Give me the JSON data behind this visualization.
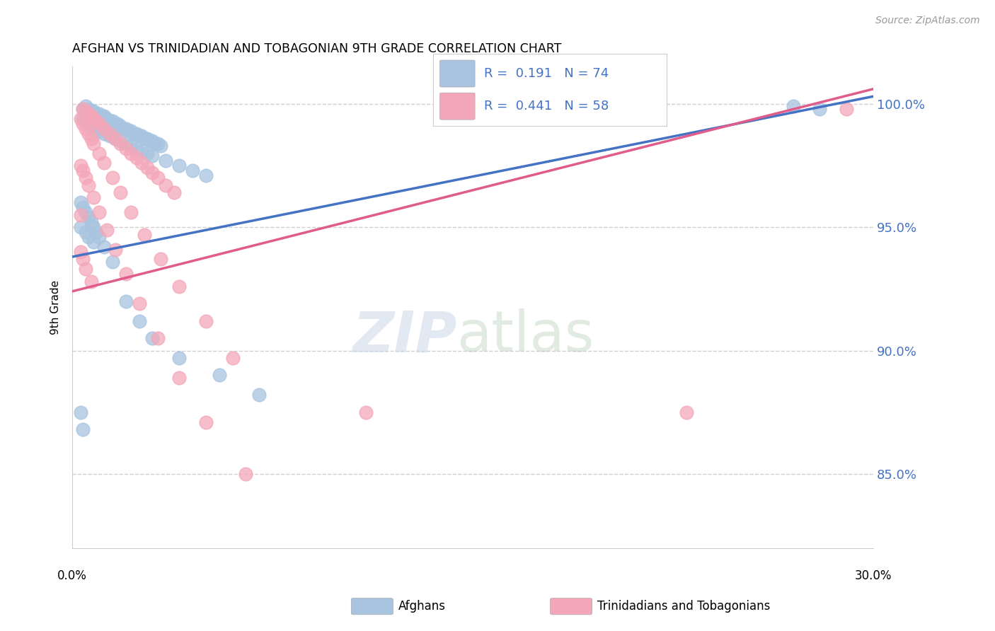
{
  "title": "AFGHAN VS TRINIDADIAN AND TOBAGONIAN 9TH GRADE CORRELATION CHART",
  "source": "Source: ZipAtlas.com",
  "ylabel": "9th Grade",
  "ytick_labels": [
    "85.0%",
    "90.0%",
    "95.0%",
    "100.0%"
  ],
  "ytick_values": [
    0.85,
    0.9,
    0.95,
    1.0
  ],
  "xlim": [
    0.0,
    0.3
  ],
  "ylim": [
    0.82,
    1.015
  ],
  "legend_r1": "R =  0.191   N = 74",
  "legend_r2": "R =  0.441   N = 58",
  "color_blue": "#a8c4e0",
  "color_pink": "#f4a7b9",
  "line_color_blue": "#4472c4",
  "line_color_pink": "#e05c8a",
  "grid_color": "#d0d0d0",
  "background_color": "#ffffff",
  "right_axis_color": "#4472c4",
  "blue_x": [
    0.004,
    0.005,
    0.006,
    0.007,
    0.008,
    0.009,
    0.01,
    0.011,
    0.012,
    0.013,
    0.014,
    0.015,
    0.016,
    0.017,
    0.018,
    0.019,
    0.02,
    0.021,
    0.022,
    0.023,
    0.024,
    0.025,
    0.026,
    0.027,
    0.028,
    0.029,
    0.03,
    0.031,
    0.032,
    0.033,
    0.004,
    0.005,
    0.006,
    0.008,
    0.009,
    0.01,
    0.012,
    0.014,
    0.016,
    0.018,
    0.02,
    0.022,
    0.024,
    0.026,
    0.028,
    0.03,
    0.035,
    0.04,
    0.045,
    0.05,
    0.003,
    0.004,
    0.005,
    0.006,
    0.007,
    0.008,
    0.009,
    0.01,
    0.012,
    0.015,
    0.02,
    0.025,
    0.03,
    0.04,
    0.055,
    0.07,
    0.003,
    0.004,
    0.27,
    0.28,
    0.003,
    0.005,
    0.006,
    0.008
  ],
  "blue_y": [
    0.998,
    0.999,
    0.998,
    0.997,
    0.997,
    0.996,
    0.996,
    0.995,
    0.995,
    0.994,
    0.993,
    0.993,
    0.992,
    0.992,
    0.991,
    0.99,
    0.99,
    0.989,
    0.989,
    0.988,
    0.988,
    0.987,
    0.987,
    0.986,
    0.986,
    0.985,
    0.985,
    0.984,
    0.984,
    0.983,
    0.994,
    0.993,
    0.992,
    0.991,
    0.99,
    0.989,
    0.988,
    0.987,
    0.986,
    0.985,
    0.984,
    0.983,
    0.982,
    0.981,
    0.98,
    0.979,
    0.977,
    0.975,
    0.973,
    0.971,
    0.96,
    0.958,
    0.956,
    0.954,
    0.952,
    0.95,
    0.948,
    0.946,
    0.942,
    0.936,
    0.92,
    0.912,
    0.905,
    0.897,
    0.89,
    0.882,
    0.875,
    0.868,
    0.999,
    0.998,
    0.95,
    0.948,
    0.946,
    0.944
  ],
  "pink_x": [
    0.004,
    0.005,
    0.006,
    0.007,
    0.008,
    0.009,
    0.01,
    0.012,
    0.014,
    0.016,
    0.018,
    0.02,
    0.022,
    0.024,
    0.026,
    0.028,
    0.03,
    0.032,
    0.035,
    0.038,
    0.003,
    0.004,
    0.005,
    0.006,
    0.007,
    0.008,
    0.01,
    0.012,
    0.015,
    0.018,
    0.022,
    0.027,
    0.033,
    0.04,
    0.05,
    0.06,
    0.003,
    0.004,
    0.005,
    0.006,
    0.008,
    0.01,
    0.013,
    0.016,
    0.02,
    0.025,
    0.032,
    0.04,
    0.05,
    0.065,
    0.003,
    0.004,
    0.005,
    0.007,
    0.11,
    0.29,
    0.003,
    0.23
  ],
  "pink_y": [
    0.998,
    0.997,
    0.996,
    0.995,
    0.994,
    0.993,
    0.992,
    0.99,
    0.988,
    0.986,
    0.984,
    0.982,
    0.98,
    0.978,
    0.976,
    0.974,
    0.972,
    0.97,
    0.967,
    0.964,
    0.994,
    0.992,
    0.99,
    0.988,
    0.986,
    0.984,
    0.98,
    0.976,
    0.97,
    0.964,
    0.956,
    0.947,
    0.937,
    0.926,
    0.912,
    0.897,
    0.975,
    0.973,
    0.97,
    0.967,
    0.962,
    0.956,
    0.949,
    0.941,
    0.931,
    0.919,
    0.905,
    0.889,
    0.871,
    0.85,
    0.94,
    0.937,
    0.933,
    0.928,
    0.875,
    0.998,
    0.955,
    0.875
  ]
}
